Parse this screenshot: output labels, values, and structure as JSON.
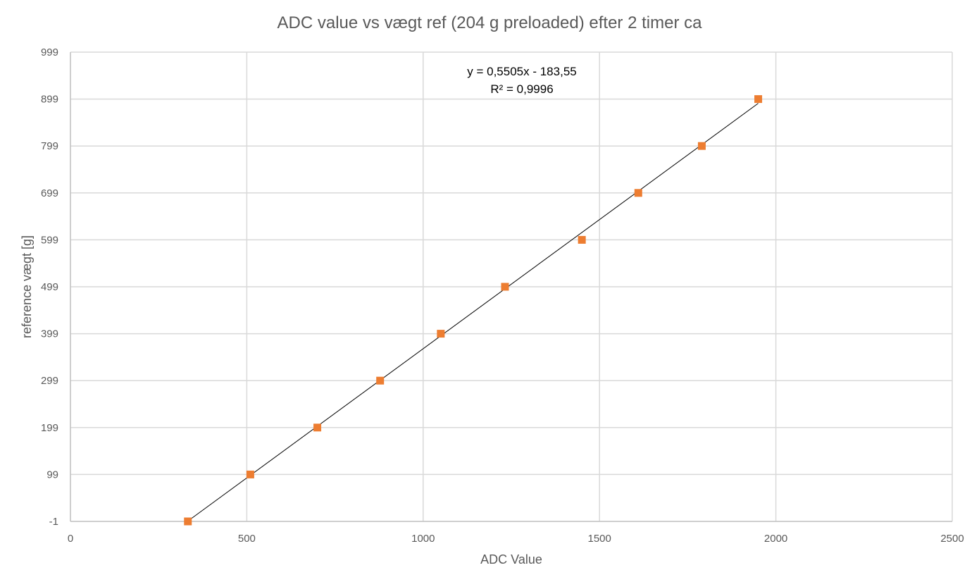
{
  "chart_data": {
    "type": "scatter",
    "title": "ADC value vs vægt ref (204 g preloaded) efter 2 timer ca",
    "xlabel": "ADC Value",
    "ylabel": "reference vægt [g]",
    "xlim": [
      0,
      2500
    ],
    "ylim": [
      -1,
      999
    ],
    "xticks": [
      0,
      500,
      1000,
      1500,
      2000,
      2500
    ],
    "yticks": [
      -1,
      99,
      199,
      299,
      399,
      499,
      599,
      699,
      799,
      899,
      999
    ],
    "grid": true,
    "legend": "none",
    "marker": "square",
    "marker_color": "#ED7D31",
    "series": [
      {
        "x": [
          333,
          510,
          700,
          878,
          1050,
          1232,
          1450,
          1610,
          1790,
          1950
        ],
        "y": [
          -1,
          99,
          199,
          299,
          399,
          499,
          599,
          699,
          799,
          899
        ]
      }
    ],
    "trendline": {
      "type": "linear",
      "slope": 0.5505,
      "intercept": -183.55,
      "x_range": [
        333,
        1950
      ],
      "color": "#000000"
    },
    "annotation": {
      "equation": "y = 0,5505x - 183,55",
      "r_squared": "R² = 0,9996"
    }
  }
}
